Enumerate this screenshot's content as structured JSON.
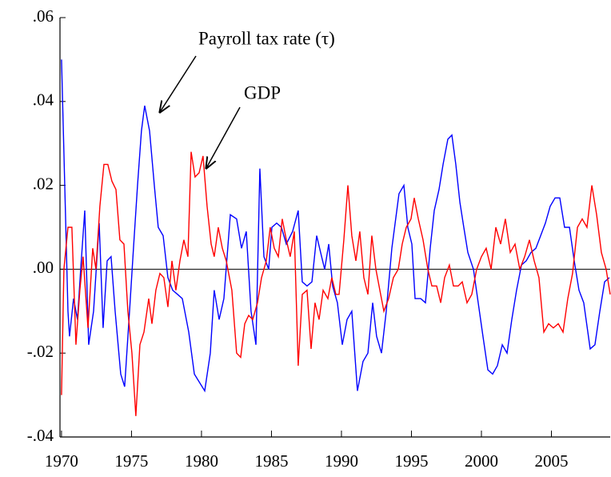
{
  "chart_data": {
    "type": "line",
    "annotations": [
      "Payroll tax rate (τ)",
      "GDP"
    ],
    "xlim": [
      1969.89,
      2009.2
    ],
    "xticks": [
      1970,
      1975,
      1980,
      1985,
      1990,
      1995,
      2000,
      2005
    ],
    "ylim": [
      -0.04,
      0.06
    ],
    "yticks": [
      {
        "value": 0.06,
        "label": ".06"
      },
      {
        "value": 0.04,
        "label": ".04"
      },
      {
        "value": 0.02,
        "label": ".02"
      },
      {
        "value": 0,
        "label": ".00"
      },
      {
        "value": -0.02,
        "label": "-.02"
      },
      {
        "value": -0.04,
        "label": "-.04"
      }
    ],
    "zero_line": true,
    "series": [
      {
        "color": "#0000ff",
        "x": [
          1970.0,
          1970.46,
          1970.57,
          1970.86,
          1971.14,
          1971.37,
          1971.66,
          1971.94,
          1972.29,
          1972.69,
          1972.97,
          1973.26,
          1973.54,
          1973.83,
          1974.23,
          1974.51,
          1974.86,
          1975.14,
          1975.43,
          1975.71,
          1975.94,
          1976.29,
          1976.63,
          1976.91,
          1977.26,
          1977.6,
          1977.94,
          1978.29,
          1978.63,
          1979.09,
          1979.49,
          1980.23,
          1980.63,
          1980.91,
          1981.26,
          1981.6,
          1982.06,
          1982.51,
          1982.86,
          1983.2,
          1983.54,
          1983.89,
          1984.17,
          1984.46,
          1984.8,
          1985.03,
          1985.37,
          1985.71,
          1986.06,
          1986.51,
          1986.91,
          1987.2,
          1987.54,
          1987.89,
          1988.23,
          1988.51,
          1988.8,
          1989.09,
          1989.37,
          1989.71,
          1990.06,
          1990.4,
          1990.74,
          1991.14,
          1991.54,
          1991.89,
          1992.23,
          1992.51,
          1992.86,
          1993.2,
          1993.6,
          1994.11,
          1994.46,
          1994.74,
          1995.03,
          1995.26,
          1995.66,
          1996.0,
          1996.34,
          1996.63,
          1996.97,
          1997.26,
          1997.6,
          1997.89,
          1998.17,
          1998.46,
          1998.74,
          1999.03,
          1999.43,
          1999.77,
          2000.11,
          2000.46,
          2000.8,
          2001.14,
          2001.49,
          2001.83,
          2002.17,
          2002.51,
          2002.86,
          2003.2,
          2003.54,
          2003.89,
          2004.23,
          2004.57,
          2004.91,
          2005.26,
          2005.6,
          2005.94,
          2006.29,
          2006.63,
          2006.97,
          2007.31,
          2007.77,
          2008.11,
          2008.46,
          2008.8,
          2009.14
        ],
        "values": [
          0.05,
          -0.01,
          -0.016,
          -0.007,
          -0.012,
          0,
          0.014,
          -0.018,
          -0.01,
          0.011,
          -0.014,
          0.002,
          0.003,
          -0.01,
          -0.025,
          -0.028,
          -0.01,
          0.005,
          0.02,
          0.033,
          0.039,
          0.033,
          0.02,
          0.01,
          0.008,
          -0.002,
          -0.005,
          -0.006,
          -0.007,
          -0.015,
          -0.025,
          -0.029,
          -0.02,
          -0.005,
          -0.012,
          -0.007,
          0.013,
          0.012,
          0.005,
          0.009,
          -0.01,
          -0.018,
          0.024,
          0.003,
          0,
          0.01,
          0.011,
          0.01,
          0.006,
          0.009,
          0.014,
          -0.003,
          -0.004,
          -0.003,
          0.008,
          0.004,
          0,
          0.006,
          -0.004,
          -0.008,
          -0.018,
          -0.012,
          -0.01,
          -0.029,
          -0.022,
          -0.02,
          -0.008,
          -0.016,
          -0.02,
          -0.01,
          0.005,
          0.018,
          0.02,
          0.01,
          0.006,
          -0.007,
          -0.007,
          -0.008,
          0.005,
          0.014,
          0.019,
          0.025,
          0.031,
          0.032,
          0.025,
          0.016,
          0.01,
          0.004,
          0,
          -0.008,
          -0.016,
          -0.024,
          -0.025,
          -0.023,
          -0.018,
          -0.02,
          -0.012,
          -0.005,
          0.001,
          0.002,
          0.004,
          0.005,
          0.008,
          0.011,
          0.015,
          0.017,
          0.017,
          0.01,
          0.01,
          0.002,
          -0.005,
          -0.008,
          -0.019,
          -0.018,
          -0.01,
          -0.003,
          -0.002
        ]
      },
      {
        "color": "#ff0000",
        "x": [
          1970.0,
          1970.17,
          1970.46,
          1970.74,
          1971.03,
          1971.31,
          1971.54,
          1971.89,
          1972.23,
          1972.46,
          1972.74,
          1973.03,
          1973.31,
          1973.6,
          1973.89,
          1974.17,
          1974.46,
          1974.74,
          1975.03,
          1975.31,
          1975.6,
          1975.89,
          1976.23,
          1976.46,
          1976.74,
          1977.03,
          1977.31,
          1977.6,
          1977.89,
          1978.17,
          1978.46,
          1978.74,
          1979.03,
          1979.26,
          1979.54,
          1979.83,
          1980.11,
          1980.4,
          1980.69,
          1980.91,
          1981.2,
          1981.49,
          1981.77,
          1982.17,
          1982.51,
          1982.8,
          1983.09,
          1983.37,
          1983.66,
          1984.0,
          1984.29,
          1984.63,
          1984.91,
          1985.2,
          1985.49,
          1985.77,
          1986.06,
          1986.34,
          1986.63,
          1986.91,
          1987.2,
          1987.54,
          1987.83,
          1988.11,
          1988.4,
          1988.69,
          1989.03,
          1989.31,
          1989.6,
          1989.83,
          1990.17,
          1990.46,
          1990.74,
          1991.03,
          1991.31,
          1991.6,
          1991.89,
          1992.17,
          1992.46,
          1992.8,
          1993.03,
          1993.37,
          1993.71,
          1994.06,
          1994.34,
          1994.63,
          1994.97,
          1995.2,
          1995.49,
          1995.83,
          1996.17,
          1996.46,
          1996.8,
          1997.09,
          1997.37,
          1997.71,
          1998.0,
          1998.34,
          1998.63,
          1998.97,
          1999.31,
          1999.66,
          2000.0,
          2000.34,
          2000.69,
          2001.03,
          2001.37,
          2001.71,
          2002.06,
          2002.4,
          2002.74,
          2003.09,
          2003.43,
          2003.77,
          2004.11,
          2004.46,
          2004.8,
          2005.14,
          2005.49,
          2005.83,
          2006.17,
          2006.51,
          2006.86,
          2007.2,
          2007.54,
          2007.89,
          2008.23,
          2008.57,
          2008.91,
          2009.2
        ],
        "values": [
          -0.03,
          0,
          0.01,
          0.01,
          -0.018,
          -0.005,
          0.003,
          -0.014,
          0.005,
          0,
          0.015,
          0.025,
          0.025,
          0.021,
          0.019,
          0.007,
          0.006,
          -0.01,
          -0.02,
          -0.035,
          -0.018,
          -0.015,
          -0.007,
          -0.013,
          -0.005,
          -0.001,
          -0.002,
          -0.009,
          0.002,
          -0.005,
          0.002,
          0.007,
          0.003,
          0.028,
          0.022,
          0.023,
          0.027,
          0.015,
          0.006,
          0.003,
          0.01,
          0.005,
          0.002,
          -0.005,
          -0.02,
          -0.021,
          -0.013,
          -0.011,
          -0.012,
          -0.008,
          -0.002,
          0.002,
          0.01,
          0.005,
          0.003,
          0.012,
          0.007,
          0.003,
          0.009,
          -0.023,
          -0.006,
          -0.005,
          -0.019,
          -0.008,
          -0.012,
          -0.005,
          -0.007,
          -0.002,
          -0.006,
          -0.006,
          0.007,
          0.02,
          0.008,
          0.002,
          0.009,
          -0.002,
          -0.006,
          0.008,
          0,
          -0.006,
          -0.01,
          -0.007,
          -0.002,
          0,
          0.006,
          0.01,
          0.012,
          0.017,
          0.012,
          0.007,
          0,
          -0.004,
          -0.004,
          -0.008,
          -0.002,
          0.001,
          -0.004,
          -0.004,
          -0.003,
          -0.008,
          -0.006,
          0,
          0.003,
          0.005,
          0,
          0.01,
          0.006,
          0.012,
          0.004,
          0.006,
          0,
          0.003,
          0.007,
          0.002,
          -0.002,
          -0.015,
          -0.013,
          -0.014,
          -0.013,
          -0.015,
          -0.007,
          -0.001,
          0.01,
          0.012,
          0.01,
          0.02,
          0.013,
          0.004,
          0,
          -0.006
        ]
      }
    ]
  }
}
